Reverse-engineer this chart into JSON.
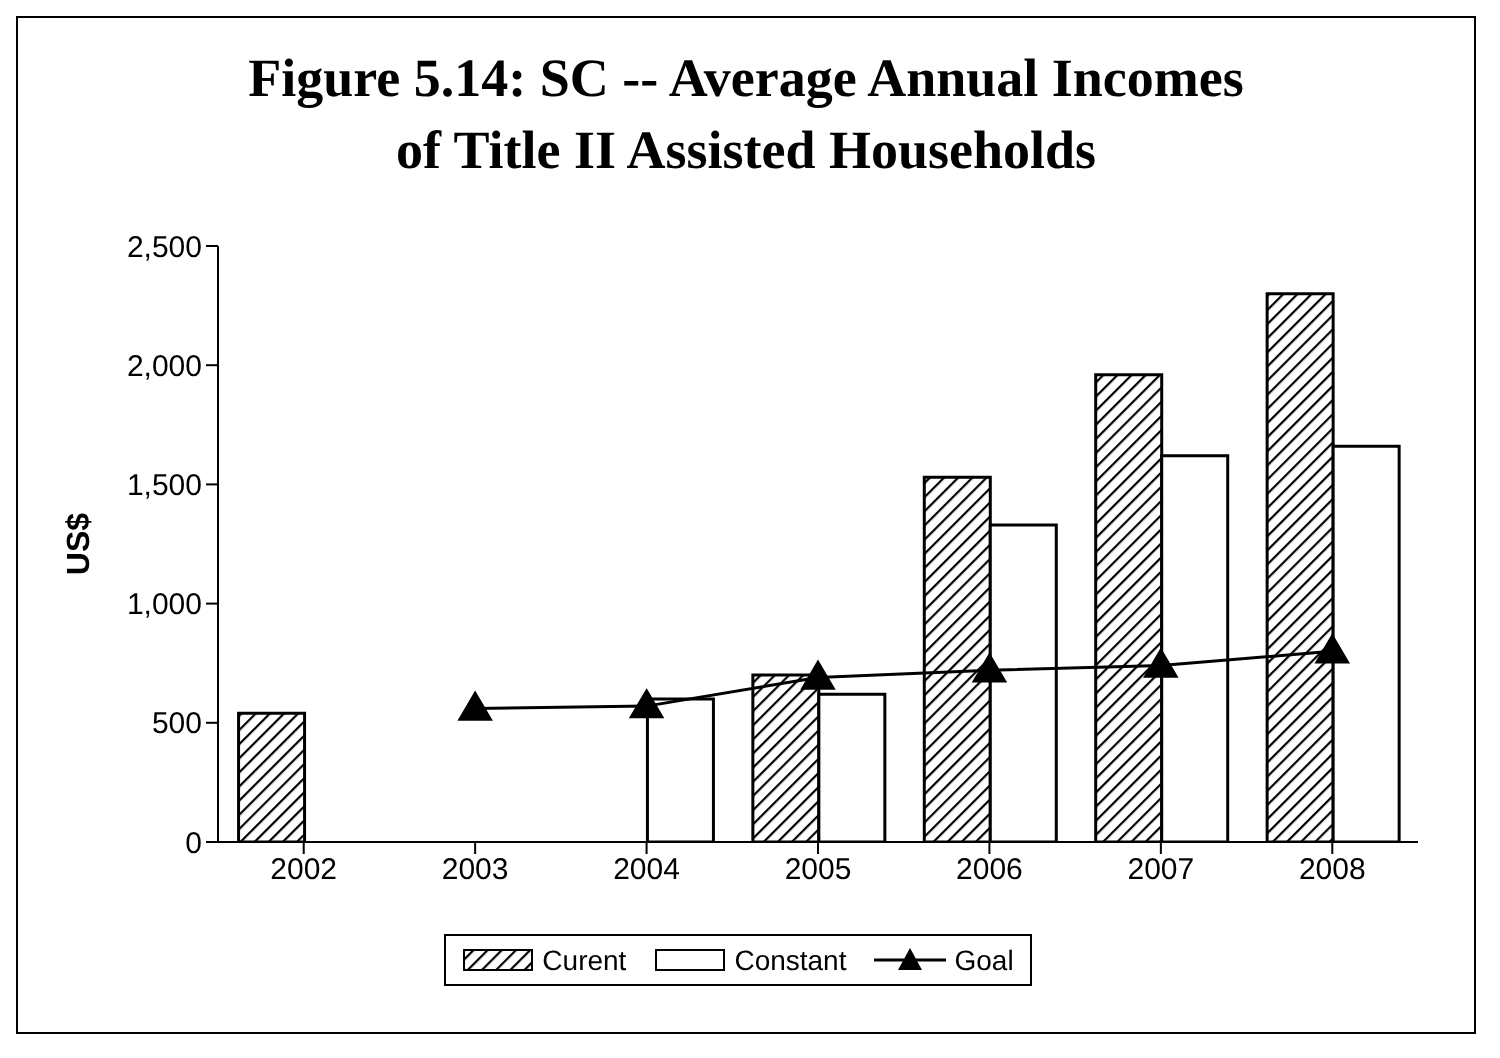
{
  "chart_data": {
    "type": "bar",
    "title": "Figure 5.14:  SC -- Average Annual Incomes\nof Title II Assisted Households",
    "ylabel": "US$",
    "categories": [
      "2002",
      "2003",
      "2004",
      "2005",
      "2006",
      "2007",
      "2008"
    ],
    "series": [
      {
        "name": "Curent",
        "color": "#000000",
        "values": [
          540,
          null,
          null,
          700,
          1530,
          1960,
          2300
        ]
      },
      {
        "name": "Constant",
        "color": "#ffffff",
        "values": [
          null,
          null,
          600,
          620,
          1330,
          1620,
          1660
        ]
      },
      {
        "name": "Goal",
        "type": "line",
        "color": "#000000",
        "marker": "triangle",
        "line_style": "solid",
        "values": [
          null,
          560,
          570,
          690,
          720,
          740,
          800
        ]
      }
    ],
    "ylim": [
      0,
      2500
    ],
    "yticks": [
      0,
      500,
      {
        "value": 1000,
        "label": "1,000"
      },
      {
        "value": 1500,
        "label": "1,500"
      },
      {
        "value": 2000,
        "label": "2,000"
      },
      {
        "value": 2500,
        "label": "2,500"
      }
    ],
    "grid": false,
    "legend": "bottom"
  }
}
